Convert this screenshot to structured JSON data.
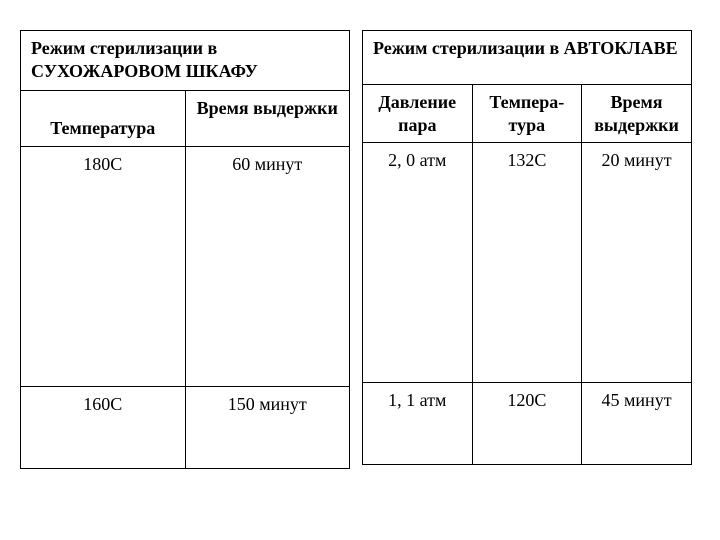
{
  "left": {
    "title": "Режим стерилизации в СУХОЖАРОВОМ ШКАФУ",
    "headers": {
      "temp": "Температура",
      "time": "Время выдержки"
    },
    "rows": [
      {
        "temp": "180С",
        "time": "60 минут"
      },
      {
        "temp": "160С",
        "time": "150 минут"
      }
    ]
  },
  "right": {
    "title": "Режим стерилизации в АВТОКЛАВЕ",
    "headers": {
      "pressure": "Давление пара",
      "temp": "Темпера-тура",
      "time": "Время выдержки"
    },
    "rows": [
      {
        "pressure": "2, 0 атм",
        "temp": "132С",
        "time": "20 минут"
      },
      {
        "pressure": "1, 1 атм",
        "temp": "120С",
        "time": "45 минут"
      }
    ]
  },
  "style": {
    "font_family": "Times New Roman",
    "font_size_pt": 14,
    "header_weight": "bold",
    "border_color": "#000000",
    "background_color": "#ffffff",
    "text_color": "#000000"
  }
}
